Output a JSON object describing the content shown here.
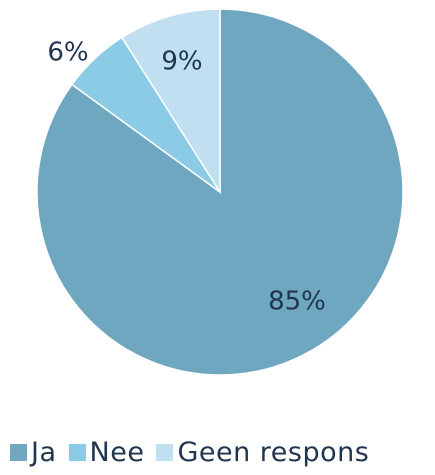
{
  "chart_data": {
    "type": "pie",
    "slices": [
      {
        "label": "Ja",
        "value": 85,
        "display": "85%",
        "color": "#6fa7c1"
      },
      {
        "label": "Nee",
        "value": 6,
        "display": "6%",
        "color": "#8ccbe6"
      },
      {
        "label": "Geen respons",
        "value": 9,
        "display": "9%",
        "color": "#c0dff0"
      }
    ],
    "start_angle_deg": 0,
    "direction": "clockwise",
    "legend_position": "bottom"
  }
}
